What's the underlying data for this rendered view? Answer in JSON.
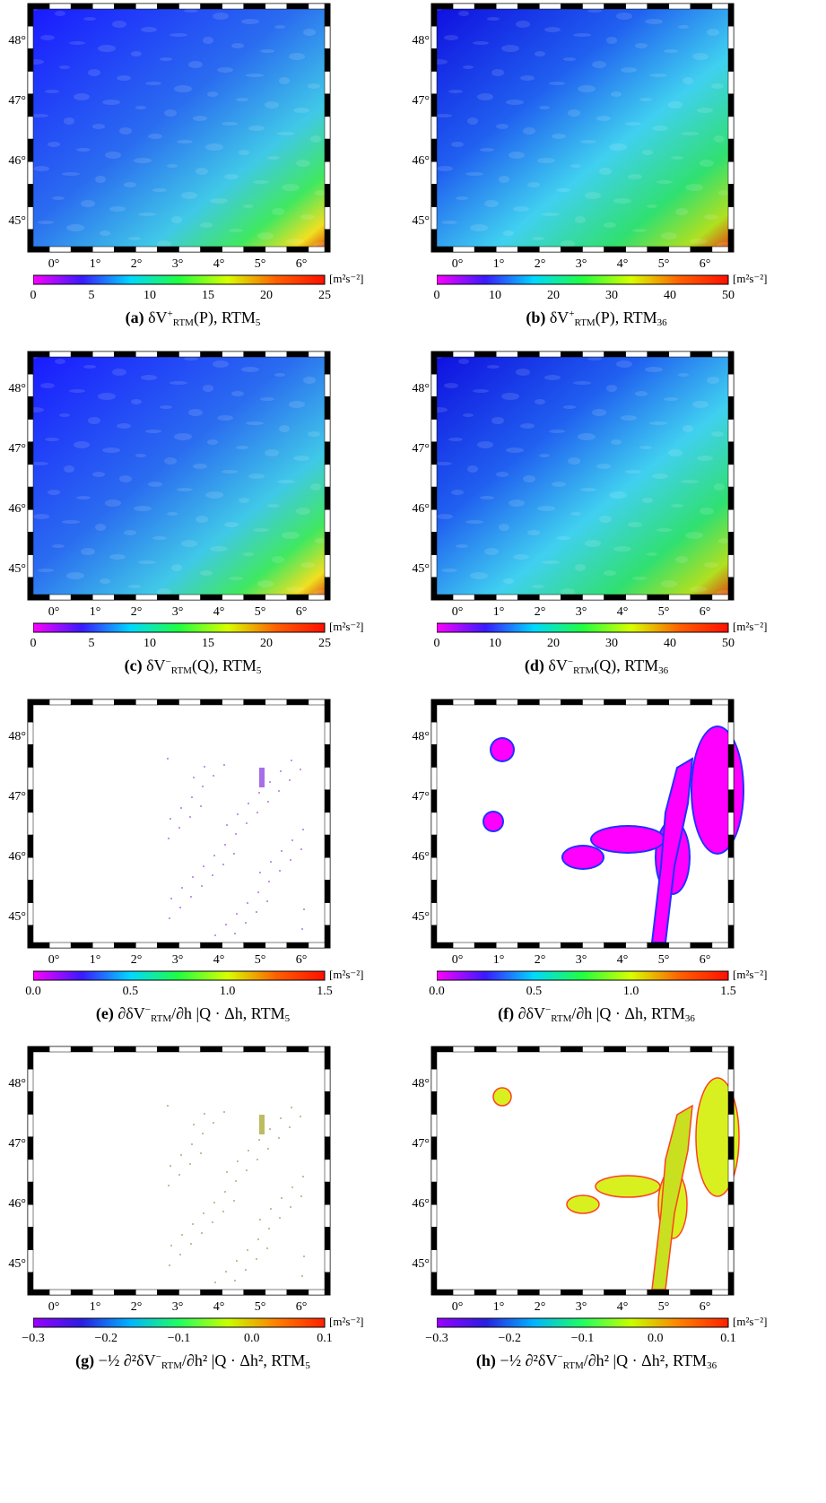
{
  "panels": [
    {
      "id": "a",
      "letter": "(a)",
      "caption_main": "δV",
      "caption_sup": "+",
      "caption_sub": "RTM",
      "caption_arg": "(P), RTM",
      "caption_model_sub": "5",
      "unit": "[m²s⁻²]",
      "cbar_ticks": [
        "0",
        "5",
        "10",
        "15",
        "20",
        "25"
      ],
      "style": "smooth5"
    },
    {
      "id": "b",
      "letter": "(b)",
      "caption_main": "δV",
      "caption_sup": "+",
      "caption_sub": "RTM",
      "caption_arg": "(P), RTM",
      "caption_model_sub": "36",
      "unit": "[m²s⁻²]",
      "cbar_ticks": [
        "0",
        "10",
        "20",
        "30",
        "40",
        "50"
      ],
      "style": "smooth36"
    },
    {
      "id": "c",
      "letter": "(c)",
      "caption_main": "δV",
      "caption_sup": "−",
      "caption_sub": "RTM",
      "caption_arg": "(Q), RTM",
      "caption_model_sub": "5",
      "unit": "[m²s⁻²]",
      "cbar_ticks": [
        "0",
        "5",
        "10",
        "15",
        "20",
        "25"
      ],
      "style": "smooth5"
    },
    {
      "id": "d",
      "letter": "(d)",
      "caption_main": "δV",
      "caption_sup": "−",
      "caption_sub": "RTM",
      "caption_arg": "(Q), RTM",
      "caption_model_sub": "36",
      "unit": "[m²s⁻²]",
      "cbar_ticks": [
        "0",
        "10",
        "20",
        "30",
        "40",
        "50"
      ],
      "style": "smooth36"
    },
    {
      "id": "e",
      "letter": "(e)",
      "caption_main": "∂δV",
      "caption_sup": "−",
      "caption_sub": "RTM",
      "caption_arg": "/∂h |Q · Δh, RTM",
      "caption_model_sub": "5",
      "unit": "[m²s⁻²]",
      "cbar_ticks": [
        "0.0",
        "0.5",
        "1.0",
        "1.5"
      ],
      "style": "sparse"
    },
    {
      "id": "f",
      "letter": "(f)",
      "caption_main": "∂δV",
      "caption_sup": "−",
      "caption_sub": "RTM",
      "caption_arg": "/∂h |Q · Δh, RTM",
      "caption_model_sub": "36",
      "unit": "[m²s⁻²]",
      "cbar_ticks": [
        "0.0",
        "0.5",
        "1.0",
        "1.5"
      ],
      "style": "blobs_magenta"
    },
    {
      "id": "g",
      "letter": "(g)",
      "caption_main": "−½ ∂²δV",
      "caption_sup": "−",
      "caption_sub": "RTM",
      "caption_arg": "/∂h² |Q · Δh², RTM",
      "caption_model_sub": "5",
      "unit": "[m²s⁻²]",
      "cbar_ticks": [
        "−0.3",
        "−0.2",
        "−0.1",
        "0.0",
        "0.1"
      ],
      "style": "sparse2"
    },
    {
      "id": "h",
      "letter": "(h)",
      "caption_main": "−½ ∂²δV",
      "caption_sup": "−",
      "caption_sub": "RTM",
      "caption_arg": "/∂h² |Q · Δh², RTM",
      "caption_model_sub": "36",
      "unit": "[m²s⁻²]",
      "cbar_ticks": [
        "−0.3",
        "−0.2",
        "−0.1",
        "0.0",
        "0.1"
      ],
      "style": "blobs_yellow"
    }
  ],
  "lat_labels": [
    "48°",
    "47°",
    "46°",
    "45°"
  ],
  "lon_labels": [
    "0°",
    "1°",
    "2°",
    "3°",
    "4°",
    "5°",
    "6°"
  ]
}
